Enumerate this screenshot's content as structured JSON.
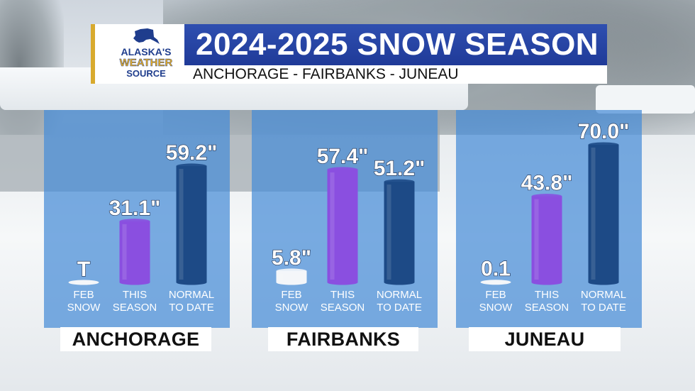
{
  "header": {
    "logo": {
      "line1": "ALASKA'S",
      "line2": "WEATHER",
      "line3": "SOURCE",
      "icon": "alaska-map-icon",
      "brand_color": "#1f3d8d",
      "accent_color": "#f4b51c"
    },
    "title": "2024-2025 SNOW SEASON",
    "subtitle": "ANCHORAGE - FAIRBANKS - JUNEAU"
  },
  "colors": {
    "feb_snow": "#f4f6f9",
    "this_season": "#8a4fe0",
    "normal_to_date": "#1d4a86",
    "panel": "#468cd7"
  },
  "chart_data": [
    {
      "type": "bar",
      "title": "ANCHORAGE",
      "categories": [
        "FEB SNOW",
        "THIS SEASON",
        "NORMAL TO DATE"
      ],
      "values": [
        0,
        31.1,
        59.2
      ],
      "labels": [
        "T",
        "31.1\"",
        "59.2\""
      ],
      "ylim": [
        0,
        70
      ]
    },
    {
      "type": "bar",
      "title": "FAIRBANKS",
      "categories": [
        "FEB SNOW",
        "THIS SEASON",
        "NORMAL TO DATE"
      ],
      "values": [
        5.8,
        57.4,
        51.2
      ],
      "labels": [
        "5.8\"",
        "57.4\"",
        "51.2\""
      ],
      "ylim": [
        0,
        70
      ]
    },
    {
      "type": "bar",
      "title": "JUNEAU",
      "categories": [
        "FEB SNOW",
        "THIS SEASON",
        "NORMAL TO DATE"
      ],
      "values": [
        0.1,
        43.8,
        70.0
      ],
      "labels": [
        "0.1",
        "43.8\"",
        "70.0\""
      ],
      "ylim": [
        0,
        70
      ]
    }
  ]
}
